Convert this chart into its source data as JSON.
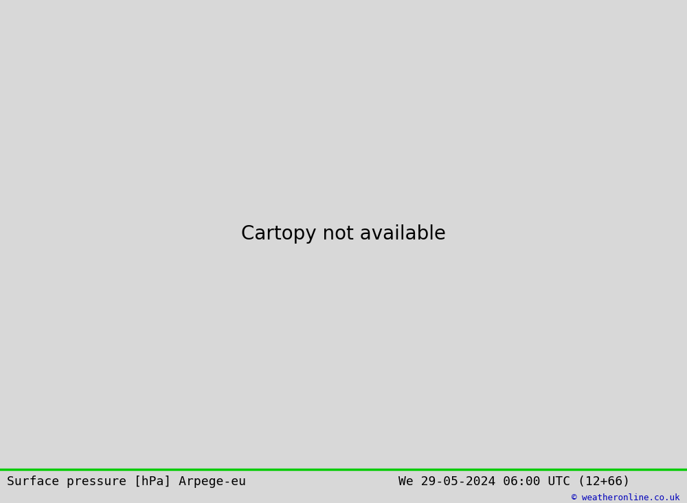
{
  "title_left": "Surface pressure [hPa] Arpege-eu",
  "title_right": "We 29-05-2024 06:00 UTC (12+66)",
  "copyright": "© weatheronline.co.uk",
  "bg_map_color": "#d0d0d0",
  "land_color": "#b8e8a0",
  "sea_color": "#d0d0d0",
  "grey_land_color": "#c8c8b0",
  "border_color": "#222222",
  "isobar_low_color": "#0000cc",
  "isobar_mid_color": "#000000",
  "isobar_high_color": "#cc0000",
  "label_bg": "#ffffff",
  "label_fontsize": 9,
  "title_fontsize": 13,
  "figsize": [
    10.0,
    7.33
  ],
  "dpi": 100,
  "lon_min": -5.0,
  "lon_max": 40.0,
  "lat_min": 53.0,
  "lat_max": 72.0
}
